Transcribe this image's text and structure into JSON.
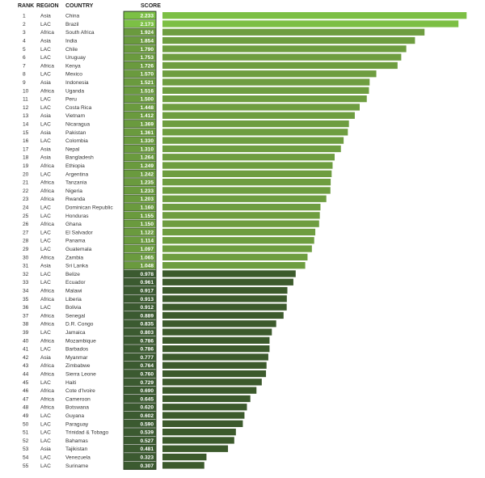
{
  "chart_data": {
    "type": "bar",
    "orientation": "horizontal",
    "columns": {
      "rank": "RANK",
      "region": "REGION",
      "country": "COUNTRY",
      "score": "SCORE"
    },
    "colors": {
      "bar_top": "#7cbf44",
      "bar_mid": "#6e9d40",
      "bar_low": "#3c5a2c",
      "cell_top": "#7cc045",
      "cell_mid": "#6a9a3e",
      "cell_low": "#3b5a30"
    },
    "rows": [
      {
        "rank": "1",
        "region": "Asia",
        "country": "China",
        "score": 2.233
      },
      {
        "rank": "2",
        "region": "LAC",
        "country": "Brazil",
        "score": 2.173
      },
      {
        "rank": "3",
        "region": "Africa",
        "country": "South Africa",
        "score": 1.924
      },
      {
        "rank": "4",
        "region": "Asia",
        "country": "India",
        "score": 1.854
      },
      {
        "rank": "5",
        "region": "LAC",
        "country": "Chile",
        "score": 1.79
      },
      {
        "rank": "6",
        "region": "LAC",
        "country": "Uruguay",
        "score": 1.753
      },
      {
        "rank": "7",
        "region": "Africa",
        "country": "Kenya",
        "score": 1.726
      },
      {
        "rank": "8",
        "region": "LAC",
        "country": "Mexico",
        "score": 1.57
      },
      {
        "rank": "9",
        "region": "Asia",
        "country": "Indonesia",
        "score": 1.521
      },
      {
        "rank": "10",
        "region": "Africa",
        "country": "Uganda",
        "score": 1.516
      },
      {
        "rank": "11",
        "region": "LAC",
        "country": "Peru",
        "score": 1.5
      },
      {
        "rank": "12",
        "region": "LAC",
        "country": "Costa Rica",
        "score": 1.448
      },
      {
        "rank": "13",
        "region": "Asia",
        "country": "Vietnam",
        "score": 1.412
      },
      {
        "rank": "14",
        "region": "LAC",
        "country": "Nicaragua",
        "score": 1.369
      },
      {
        "rank": "15",
        "region": "Asia",
        "country": "Pakistan",
        "score": 1.361
      },
      {
        "rank": "16",
        "region": "LAC",
        "country": "Colombia",
        "score": 1.33
      },
      {
        "rank": "17",
        "region": "Asia",
        "country": "Nepal",
        "score": 1.31
      },
      {
        "rank": "18",
        "region": "Asia",
        "country": "Bangladesh",
        "score": 1.264
      },
      {
        "rank": "19",
        "region": "Africa",
        "country": "Ethiopia",
        "score": 1.249
      },
      {
        "rank": "20",
        "region": "LAC",
        "country": "Argentina",
        "score": 1.242
      },
      {
        "rank": "21",
        "region": "Africa",
        "country": "Tanzania",
        "score": 1.235
      },
      {
        "rank": "22",
        "region": "Africa",
        "country": "Nigeria",
        "score": 1.233
      },
      {
        "rank": "23",
        "region": "Africa",
        "country": "Rwanda",
        "score": 1.203
      },
      {
        "rank": "24",
        "region": "LAC",
        "country": "Dominican Republic",
        "score": 1.16
      },
      {
        "rank": "25",
        "region": "LAC",
        "country": "Honduras",
        "score": 1.155
      },
      {
        "rank": "26",
        "region": "Africa",
        "country": "Ghana",
        "score": 1.15
      },
      {
        "rank": "27",
        "region": "LAC",
        "country": "El Salvador",
        "score": 1.122
      },
      {
        "rank": "28",
        "region": "LAC",
        "country": "Panama",
        "score": 1.114
      },
      {
        "rank": "29",
        "region": "LAC",
        "country": "Guatemala",
        "score": 1.097
      },
      {
        "rank": "30",
        "region": "Africa",
        "country": "Zambia",
        "score": 1.065
      },
      {
        "rank": "31",
        "region": "Asia",
        "country": "Sri Lanka",
        "score": 1.048
      },
      {
        "rank": "32",
        "region": "LAC",
        "country": "Belize",
        "score": 0.978
      },
      {
        "rank": "33",
        "region": "LAC",
        "country": "Ecuador",
        "score": 0.961
      },
      {
        "rank": "34",
        "region": "Africa",
        "country": "Malawi",
        "score": 0.917
      },
      {
        "rank": "35",
        "region": "Africa",
        "country": "Liberia",
        "score": 0.913
      },
      {
        "rank": "36",
        "region": "LAC",
        "country": "Bolivia",
        "score": 0.912
      },
      {
        "rank": "37",
        "region": "Africa",
        "country": "Senegal",
        "score": 0.889
      },
      {
        "rank": "38",
        "region": "Africa",
        "country": "D.R. Congo",
        "score": 0.835
      },
      {
        "rank": "39",
        "region": "LAC",
        "country": "Jamaica",
        "score": 0.803
      },
      {
        "rank": "40",
        "region": "Africa",
        "country": "Mozambique",
        "score": 0.786
      },
      {
        "rank": "41",
        "region": "LAC",
        "country": "Barbados",
        "score": 0.786
      },
      {
        "rank": "42",
        "region": "Asia",
        "country": "Myanmar",
        "score": 0.777
      },
      {
        "rank": "43",
        "region": "Africa",
        "country": "Zimbabwe",
        "score": 0.764
      },
      {
        "rank": "44",
        "region": "Africa",
        "country": "Sierra Leone",
        "score": 0.76
      },
      {
        "rank": "45",
        "region": "LAC",
        "country": "Haiti",
        "score": 0.729
      },
      {
        "rank": "46",
        "region": "Africa",
        "country": "Cote d'Ivoire",
        "score": 0.69
      },
      {
        "rank": "47",
        "region": "Africa",
        "country": "Cameroon",
        "score": 0.645
      },
      {
        "rank": "48",
        "region": "Africa",
        "country": "Botswana",
        "score": 0.62
      },
      {
        "rank": "49",
        "region": "LAC",
        "country": "Guyana",
        "score": 0.602
      },
      {
        "rank": "50",
        "region": "LAC",
        "country": "Paraguay",
        "score": 0.59
      },
      {
        "rank": "51",
        "region": "LAC",
        "country": "Trinidad & Tobago",
        "score": 0.539
      },
      {
        "rank": "52",
        "region": "LAC",
        "country": "Bahamas",
        "score": 0.527
      },
      {
        "rank": "53",
        "region": "Asia",
        "country": "Tajikistan",
        "score": 0.481
      },
      {
        "rank": "54",
        "region": "LAC",
        "country": "Venezuela",
        "score": 0.323
      },
      {
        "rank": "55",
        "region": "LAC",
        "country": "Suriname",
        "score": 0.307
      }
    ]
  }
}
